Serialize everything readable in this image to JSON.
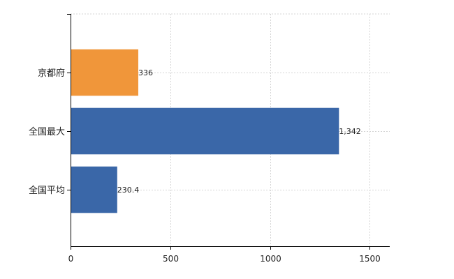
{
  "chart_data": {
    "type": "bar",
    "orientation": "horizontal",
    "categories": [
      "京都府",
      "全国最大",
      "全国平均"
    ],
    "values": [
      336,
      1342,
      230.4
    ],
    "value_labels": [
      "336",
      "1,342",
      "230.4"
    ],
    "bar_colors": [
      "#F0963A",
      "#3A67A8",
      "#3A67A8"
    ],
    "xlim": [
      0,
      1600
    ],
    "xticks": [
      0,
      500,
      1000,
      1500
    ],
    "grid": true,
    "title": "",
    "xlabel": "",
    "ylabel": ""
  }
}
